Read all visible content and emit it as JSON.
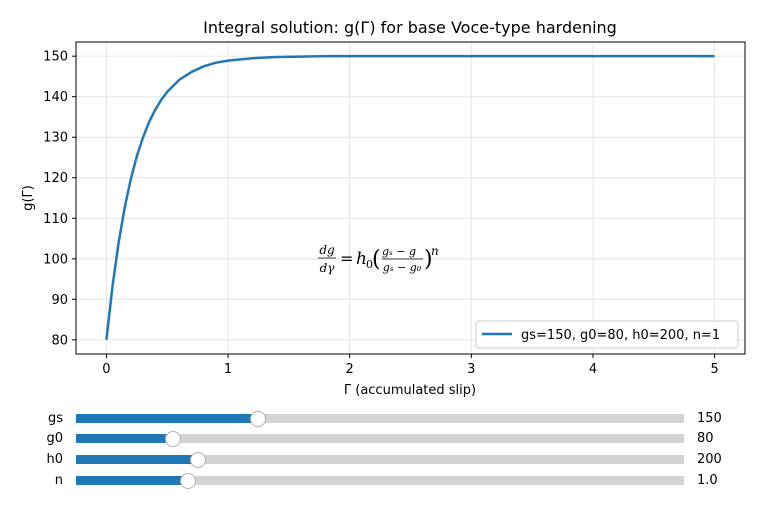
{
  "colors": {
    "line": "#1f77b4",
    "track": "#d3d3d3",
    "grid": "#e6e6e6"
  },
  "chart_data": {
    "type": "line",
    "title": "Integral solution: g(Γ) for base Voce-type hardening",
    "xlabel": "Γ (accumulated slip)",
    "ylabel": "g(Γ)",
    "xlim": [
      -0.25,
      5.25
    ],
    "ylim": [
      76.5,
      153.5
    ],
    "xticks": [
      0,
      1,
      2,
      3,
      4,
      5
    ],
    "yticks": [
      80,
      90,
      100,
      110,
      120,
      130,
      140,
      150
    ],
    "grid": true,
    "legend_position": "lower-right",
    "annotation": "dg/dγ = h₀((gₛ − g)/(gₛ − g₀))ⁿ",
    "series": [
      {
        "name": "gs=150, g0=80, h0=200, n=1",
        "color": "#1f77b4",
        "x": [
          0,
          0.05,
          0.1,
          0.15,
          0.2,
          0.25,
          0.3,
          0.35,
          0.4,
          0.45,
          0.5,
          0.6,
          0.7,
          0.8,
          0.9,
          1.0,
          1.2,
          1.4,
          1.6,
          1.8,
          2.0,
          2.5,
          3.0,
          3.5,
          4.0,
          4.5,
          5.0
        ],
        "y": [
          80.0,
          93.2,
          103.9,
          112.6,
          119.6,
          125.3,
          129.9,
          133.7,
          136.7,
          139.2,
          141.2,
          144.2,
          146.1,
          147.5,
          148.4,
          148.9,
          149.5,
          149.8,
          149.9,
          150.0,
          150.0,
          150.0,
          150.0,
          150.0,
          150.0,
          150.0,
          150.0
        ]
      }
    ]
  },
  "sliders": [
    {
      "name": "gs",
      "value": "150",
      "fraction": 0.3
    },
    {
      "name": "g0",
      "value": "80",
      "fraction": 0.16
    },
    {
      "name": "h0",
      "value": "200",
      "fraction": 0.2
    },
    {
      "name": "n",
      "value": "1.0",
      "fraction": 0.185
    }
  ]
}
